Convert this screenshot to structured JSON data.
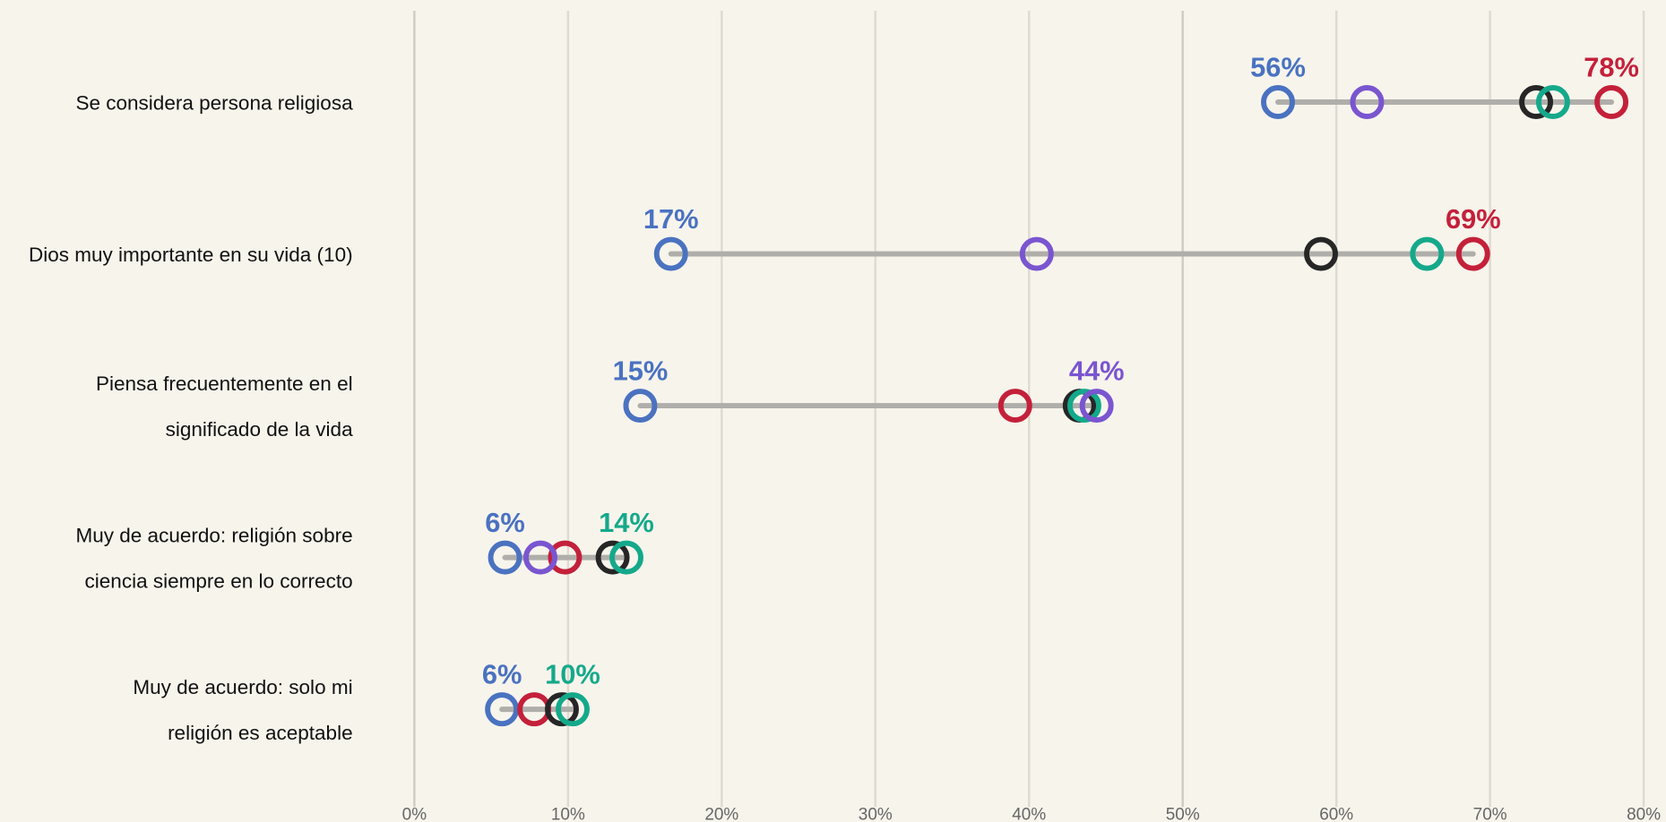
{
  "chart_data": {
    "type": "dot",
    "categories": [
      "Se considera persona religiosa",
      "Dios muy importante en su vida (10)",
      "Piensa frecuentemente en el\nsignificado de la vida",
      "Muy de acuerdo: religión sobre\nciencia siempre en lo correcto",
      "Muy de acuerdo: solo mi\nreligión es aceptable"
    ],
    "series": [
      {
        "color": "#4a72c0",
        "values": [
          56.2,
          16.7,
          14.7,
          5.9,
          5.7
        ],
        "value_labels": [
          "56%",
          "17%",
          "15%",
          "6%",
          "6%"
        ]
      },
      {
        "color": "#c4203a",
        "values": [
          77.9,
          68.9,
          39.1,
          9.8,
          7.8
        ],
        "value_labels": [
          "78%",
          "69%",
          null,
          null,
          null
        ]
      },
      {
        "color": "#262626",
        "values": [
          73.0,
          59.0,
          43.3,
          12.9,
          9.6
        ]
      },
      {
        "color": "#14a98a",
        "values": [
          74.1,
          65.9,
          43.6,
          13.8,
          10.3
        ],
        "value_labels": [
          null,
          null,
          null,
          "14%",
          "10%"
        ]
      },
      {
        "color": "#7a55d0",
        "values": [
          62.0,
          40.5,
          44.4,
          8.2,
          null
        ],
        "value_labels": [
          null,
          null,
          "44%",
          null,
          null
        ]
      }
    ],
    "xlim": [
      0,
      80
    ],
    "xticks": [
      {
        "value": 0,
        "label": "0%"
      },
      {
        "value": 10,
        "label": "10%"
      },
      {
        "value": 20,
        "label": "20%"
      },
      {
        "value": 30,
        "label": "30%"
      },
      {
        "value": 40,
        "label": "40%"
      },
      {
        "value": 50,
        "label": "50%"
      },
      {
        "value": 60,
        "label": "60%"
      },
      {
        "value": 70,
        "label": "70%"
      },
      {
        "value": 80,
        "label": "80%"
      }
    ],
    "grid": true
  }
}
